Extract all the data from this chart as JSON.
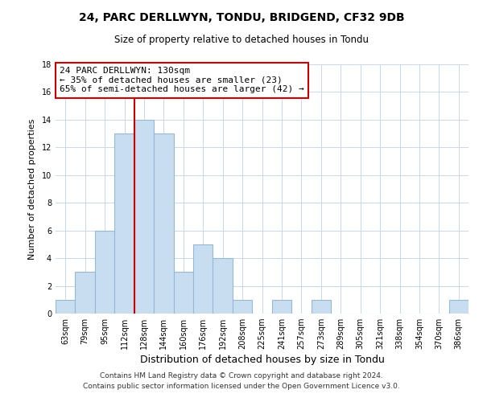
{
  "title": "24, PARC DERLLWYN, TONDU, BRIDGEND, CF32 9DB",
  "subtitle": "Size of property relative to detached houses in Tondu",
  "xlabel": "Distribution of detached houses by size in Tondu",
  "ylabel": "Number of detached properties",
  "bar_labels": [
    "63sqm",
    "79sqm",
    "95sqm",
    "112sqm",
    "128sqm",
    "144sqm",
    "160sqm",
    "176sqm",
    "192sqm",
    "208sqm",
    "225sqm",
    "241sqm",
    "257sqm",
    "273sqm",
    "289sqm",
    "305sqm",
    "321sqm",
    "338sqm",
    "354sqm",
    "370sqm",
    "386sqm"
  ],
  "bar_values": [
    1,
    3,
    6,
    13,
    14,
    13,
    3,
    5,
    4,
    1,
    0,
    1,
    0,
    1,
    0,
    0,
    0,
    0,
    0,
    0,
    1
  ],
  "bar_color": "#c9ddf0",
  "bar_edgecolor": "#95b8d8",
  "property_line_color": "#cc0000",
  "property_line_x": 3.5,
  "annotation_title": "24 PARC DERLLWYN: 130sqm",
  "annotation_line1": "← 35% of detached houses are smaller (23)",
  "annotation_line2": "65% of semi-detached houses are larger (42) →",
  "annotation_box_edgecolor": "#cc0000",
  "annotation_box_facecolor": "#ffffff",
  "ylim": [
    0,
    18
  ],
  "yticks": [
    0,
    2,
    4,
    6,
    8,
    10,
    12,
    14,
    16,
    18
  ],
  "footer_line1": "Contains HM Land Registry data © Crown copyright and database right 2024.",
  "footer_line2": "Contains public sector information licensed under the Open Government Licence v3.0.",
  "background_color": "#ffffff",
  "grid_color": "#c8d8e8",
  "title_fontsize": 10,
  "subtitle_fontsize": 8.5,
  "xlabel_fontsize": 9,
  "ylabel_fontsize": 8,
  "tick_fontsize": 7,
  "annotation_fontsize": 8,
  "footer_fontsize": 6.5
}
